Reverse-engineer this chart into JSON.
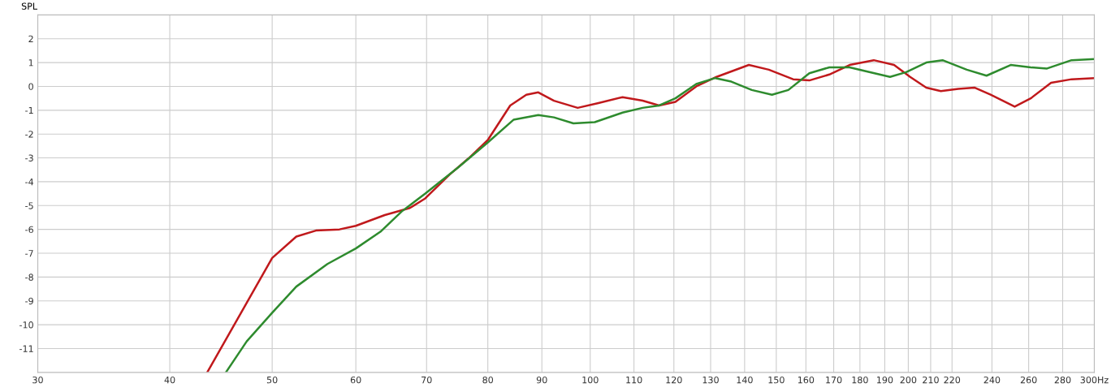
{
  "chart_data": {
    "type": "line",
    "ylabel": "SPL",
    "xlim": [
      30,
      300
    ],
    "ylim": [
      -12,
      3
    ],
    "log": "x",
    "grid": true,
    "marker": "none",
    "line_style": "solid",
    "xticks": [
      30,
      40,
      50,
      60,
      70,
      80,
      90,
      100,
      110,
      120,
      130,
      140,
      150,
      160,
      170,
      180,
      190,
      200,
      210,
      220,
      240,
      260,
      280,
      {
        "value": 300,
        "label": "300Hz"
      }
    ],
    "yticks": [
      -11,
      -10,
      -9,
      -8,
      -7,
      -6,
      -5,
      -4,
      -3,
      -2,
      -1,
      0,
      1,
      2
    ],
    "series": [
      {
        "color": "#c0191c",
        "x": [
          43.4,
          50.0,
          52.7,
          55.0,
          57.9,
          60.0,
          63.9,
          67.5,
          69.8,
          73.6,
          76.8,
          80.0,
          84.0,
          87.0,
          89.3,
          92.4,
          97.3,
          101.8,
          107.3,
          112.1,
          116.2,
          120.4,
          126.0,
          131.7,
          141.3,
          147.6,
          155.6,
          161.2,
          168.4,
          176.0,
          185.5,
          193.9,
          200.8,
          208.0,
          214.7,
          223.0,
          231.0,
          239.3,
          252.2,
          261.2,
          273.0,
          285.5,
          300
        ],
        "values": [
          -12.0,
          -7.2,
          -6.3,
          -6.05,
          -6.0,
          -5.85,
          -5.4,
          -5.1,
          -4.7,
          -3.7,
          -3.0,
          -2.25,
          -0.8,
          -0.35,
          -0.25,
          -0.6,
          -0.9,
          -0.7,
          -0.45,
          -0.6,
          -0.8,
          -0.65,
          0.0,
          0.4,
          0.9,
          0.7,
          0.3,
          0.25,
          0.5,
          0.9,
          1.1,
          0.9,
          0.4,
          -0.05,
          -0.2,
          -0.1,
          -0.05,
          -0.35,
          -0.85,
          -0.5,
          0.15,
          0.3,
          0.35
        ]
      },
      {
        "color": "#2e8b2e",
        "x": [
          45.2,
          47.3,
          50.0,
          52.7,
          56.4,
          60.0,
          63.3,
          66.3,
          69.8,
          75.0,
          80.0,
          84.6,
          89.3,
          92.4,
          96.4,
          101.0,
          107.3,
          112.1,
          116.2,
          120.4,
          126.0,
          131.3,
          136.0,
          142.2,
          148.6,
          154.0,
          161.2,
          168.4,
          176.0,
          183.7,
          192.2,
          199.1,
          208.0,
          215.5,
          227.2,
          237.2,
          250.0,
          261.2,
          270.6,
          285.5,
          300
        ],
        "values": [
          -12.0,
          -10.7,
          -9.5,
          -8.4,
          -7.45,
          -6.8,
          -6.1,
          -5.25,
          -4.5,
          -3.4,
          -2.35,
          -1.4,
          -1.2,
          -1.3,
          -1.55,
          -1.5,
          -1.1,
          -0.9,
          -0.8,
          -0.5,
          0.1,
          0.35,
          0.2,
          -0.15,
          -0.35,
          -0.15,
          0.55,
          0.8,
          0.8,
          0.6,
          0.4,
          0.6,
          1.0,
          1.1,
          0.7,
          0.45,
          0.9,
          0.8,
          0.75,
          1.1,
          1.15
        ]
      }
    ]
  }
}
